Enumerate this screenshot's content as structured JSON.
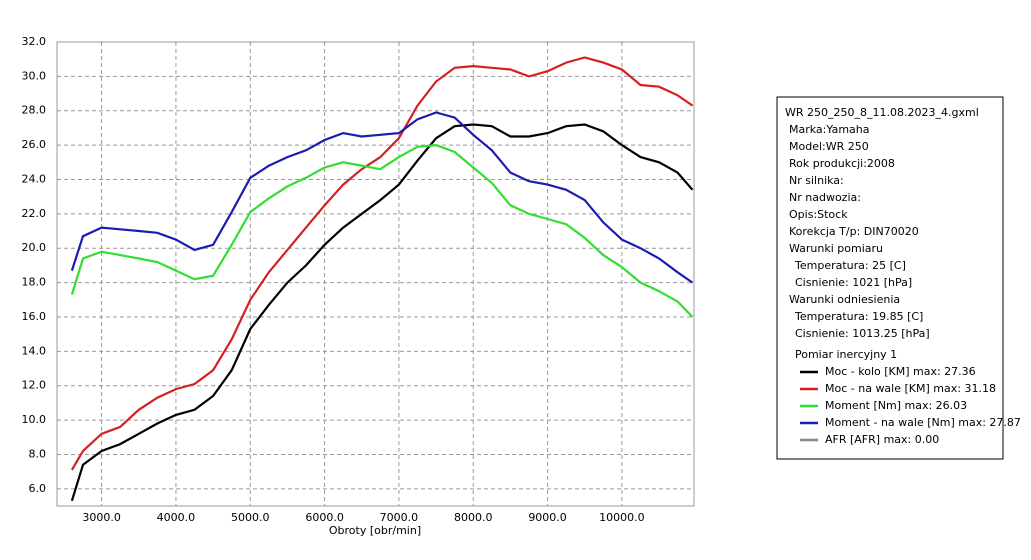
{
  "chart_data": {
    "type": "line",
    "x_label": "Obroty [obr/min]",
    "x": [
      2600,
      2750,
      3000,
      3250,
      3500,
      3750,
      4000,
      4250,
      4500,
      4750,
      5000,
      5250,
      5500,
      5750,
      6000,
      6250,
      6500,
      6750,
      7000,
      7250,
      7500,
      7750,
      8000,
      8250,
      8500,
      8750,
      9000,
      9250,
      9500,
      9750,
      10000,
      10250,
      10500,
      10750,
      10950
    ],
    "xlim": [
      2400,
      10970
    ],
    "xticks": [
      {
        "value": 3000,
        "label": "3000.0"
      },
      {
        "value": 4000,
        "label": "4000.0"
      },
      {
        "value": 5000,
        "label": "5000.0"
      },
      {
        "value": 6000,
        "label": "6000.0"
      },
      {
        "value": 7000,
        "label": "7000.0"
      },
      {
        "value": 8000,
        "label": "8000.0"
      },
      {
        "value": 9000,
        "label": "9000.0"
      },
      {
        "value": 10000,
        "label": "10000.0"
      }
    ],
    "ylim": [
      5,
      32
    ],
    "yticks": [
      {
        "value": 6,
        "label": "6.0"
      },
      {
        "value": 8,
        "label": "8.0"
      },
      {
        "value": 10,
        "label": "10.0"
      },
      {
        "value": 12,
        "label": "12.0"
      },
      {
        "value": 14,
        "label": "14.0"
      },
      {
        "value": 16,
        "label": "16.0"
      },
      {
        "value": 18,
        "label": "18.0"
      },
      {
        "value": 20,
        "label": "20.0"
      },
      {
        "value": 22,
        "label": "22.0"
      },
      {
        "value": 24,
        "label": "24.0"
      },
      {
        "value": 26,
        "label": "26.0"
      },
      {
        "value": 28,
        "label": "28.0"
      },
      {
        "value": 30,
        "label": "30.0"
      },
      {
        "value": 32,
        "label": "32.0"
      }
    ],
    "grid": true,
    "series": [
      {
        "name": "Moc - kolo [KM] max: 27.36",
        "color": "#000000",
        "values": [
          5.3,
          7.4,
          8.2,
          8.6,
          9.2,
          9.8,
          10.3,
          10.6,
          11.4,
          12.9,
          15.3,
          16.7,
          18.0,
          19.0,
          20.2,
          21.2,
          22.0,
          22.8,
          23.7,
          25.1,
          26.4,
          27.1,
          27.2,
          27.1,
          26.5,
          26.5,
          26.7,
          27.1,
          27.2,
          26.8,
          26.0,
          25.3,
          25.0,
          24.4,
          23.4
        ]
      },
      {
        "name": "Moc - na wale [KM] max: 31.18",
        "color": "#d42020",
        "values": [
          7.1,
          8.2,
          9.2,
          9.6,
          10.6,
          11.3,
          11.8,
          12.1,
          12.9,
          14.7,
          17.0,
          18.6,
          19.9,
          21.2,
          22.5,
          23.7,
          24.6,
          25.3,
          26.4,
          28.3,
          29.7,
          30.5,
          30.6,
          30.5,
          30.4,
          30.0,
          30.3,
          30.8,
          31.1,
          30.8,
          30.4,
          29.5,
          29.4,
          28.9,
          28.3
        ]
      },
      {
        "name": "Moment [Nm] max: 26.03",
        "color": "#33dd33",
        "values": [
          17.3,
          19.4,
          19.8,
          19.6,
          19.4,
          19.2,
          18.7,
          18.2,
          18.4,
          20.2,
          22.1,
          22.9,
          23.6,
          24.1,
          24.7,
          25.0,
          24.8,
          24.6,
          25.3,
          25.9,
          26.0,
          25.6,
          24.7,
          23.8,
          22.5,
          22.0,
          21.7,
          21.4,
          20.6,
          19.6,
          18.9,
          18.0,
          17.5,
          16.9,
          16.0
        ]
      },
      {
        "name": "Moment - na wale [Nm] max: 27.87",
        "color": "#1c1cb0",
        "values": [
          18.7,
          20.7,
          21.2,
          21.1,
          21.0,
          20.9,
          20.5,
          19.9,
          20.2,
          22.1,
          24.1,
          24.8,
          25.3,
          25.7,
          26.3,
          26.7,
          26.5,
          26.6,
          26.7,
          27.5,
          27.9,
          27.6,
          26.6,
          25.7,
          24.4,
          23.9,
          23.7,
          23.4,
          22.8,
          21.5,
          20.5,
          20.0,
          19.4,
          18.6,
          18.0
        ]
      },
      {
        "name": "AFR [AFR] max: 0.00",
        "color": "#888888"
      }
    ]
  },
  "info_box": {
    "title": "WR 250_250_8_11.08.2023_4.gxml",
    "details": [
      "Marka:Yamaha",
      "Model:WR 250",
      "Rok produkcji:2008",
      "Nr silnika:",
      "Nr nadwozia:",
      "Opis:Stock",
      "Korekcja T/p: DIN70020"
    ],
    "conditions": [
      {
        "heading": "Warunki pomiaru",
        "items": [
          "Temperatura: 25 [C]",
          "Cisnienie: 1021 [hPa]"
        ]
      },
      {
        "heading": "Warunki odniesienia",
        "items": [
          "Temperatura: 19.85 [C]",
          "Cisnienie: 1013.25 [hPa]"
        ]
      }
    ],
    "legend_heading": "Pomiar inercyjny 1"
  }
}
